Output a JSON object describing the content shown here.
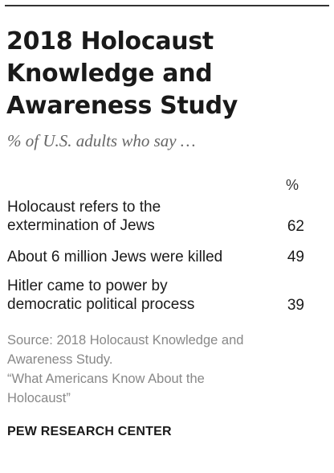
{
  "title": "2018 Holocaust Knowledge and Awareness Study",
  "subtitle": "% of U.S. adults who say …",
  "column_header": "%",
  "rows": [
    {
      "label": "Holocaust refers to the\nextermination of Jews",
      "value": "62"
    },
    {
      "label": "About 6 million Jews were killed",
      "value": "49"
    },
    {
      "label": "Hitler came to power by\ndemocratic political process",
      "value": "39"
    }
  ],
  "source": {
    "line1": "Source: 2018 Holocaust Knowledge and",
    "line2": "Awareness Study.",
    "line3": "“What Americans Know About the",
    "line4": "Holocaust”"
  },
  "footer": "PEW RESEARCH CENTER"
}
